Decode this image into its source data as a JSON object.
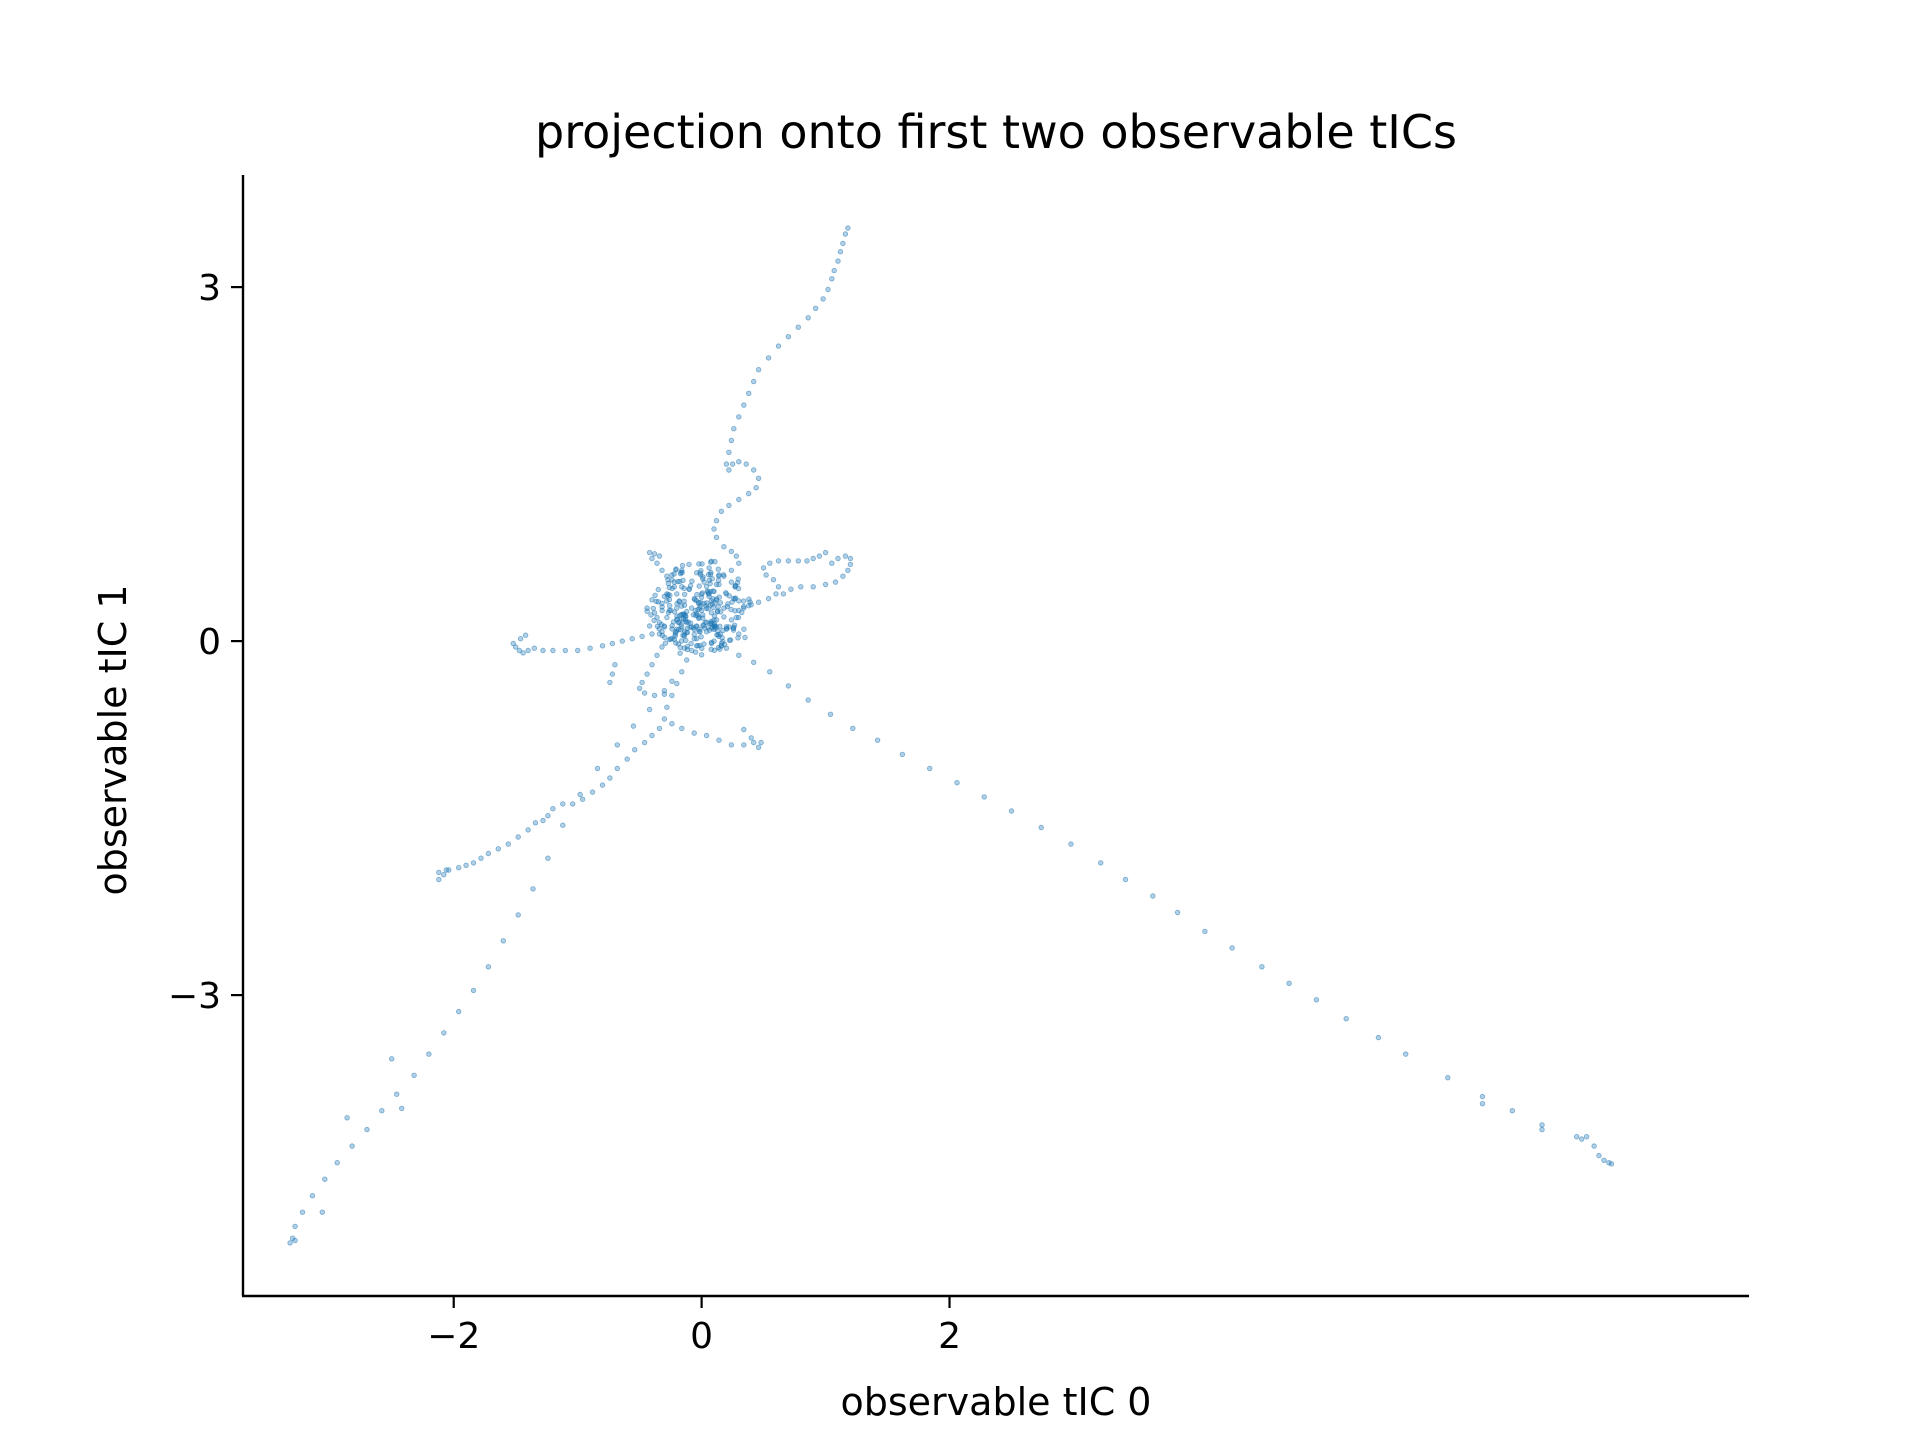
{
  "chart_data": {
    "type": "scatter",
    "title": "projection onto first two observable tICs",
    "xlabel": "observable tIC 0",
    "ylabel": "observable tIC 1",
    "xlim": [
      -3.7,
      8.45
    ],
    "ylim": [
      -5.55,
      3.95
    ],
    "xticks": [
      -2,
      0,
      2
    ],
    "xtick_labels": [
      "−2",
      "0",
      "2"
    ],
    "yticks": [
      -3,
      0,
      3
    ],
    "ytick_labels": [
      "−3",
      "0",
      "3"
    ],
    "grid": false,
    "legend": "none",
    "color": "#1f77b4",
    "series": [
      {
        "points": [
          [
            1.18,
            3.5
          ],
          [
            1.16,
            3.45
          ],
          [
            1.14,
            3.37
          ],
          [
            1.12,
            3.3
          ],
          [
            1.1,
            3.22
          ],
          [
            1.07,
            3.14
          ],
          [
            1.05,
            3.07
          ],
          [
            1.02,
            2.98
          ],
          [
            0.98,
            2.9
          ],
          [
            0.92,
            2.82
          ],
          [
            0.86,
            2.74
          ],
          [
            0.78,
            2.66
          ],
          [
            0.7,
            2.58
          ],
          [
            0.62,
            2.5
          ],
          [
            0.54,
            2.4
          ],
          [
            0.46,
            2.3
          ],
          [
            0.42,
            2.2
          ],
          [
            0.38,
            2.1
          ],
          [
            0.34,
            2.0
          ],
          [
            0.3,
            1.9
          ],
          [
            0.26,
            1.8
          ],
          [
            0.24,
            1.7
          ],
          [
            0.22,
            1.6
          ],
          [
            0.2,
            1.5
          ],
          [
            0.22,
            1.45
          ],
          [
            0.25,
            1.5
          ],
          [
            0.3,
            1.52
          ],
          [
            0.36,
            1.5
          ],
          [
            0.42,
            1.45
          ],
          [
            0.46,
            1.38
          ],
          [
            0.44,
            1.3
          ],
          [
            0.38,
            1.25
          ],
          [
            0.3,
            1.2
          ],
          [
            0.22,
            1.15
          ],
          [
            0.16,
            1.1
          ],
          [
            0.12,
            1.02
          ],
          [
            0.1,
            0.95
          ],
          [
            0.12,
            0.88
          ],
          [
            0.18,
            0.8
          ],
          [
            0.24,
            0.76
          ],
          [
            0.28,
            0.72
          ],
          [
            0.3,
            0.66
          ],
          [
            0.24,
            0.6
          ],
          [
            0.18,
            0.55
          ],
          [
            0.14,
            0.48
          ],
          [
            0.1,
            0.42
          ],
          [
            0.06,
            0.38
          ],
          [
            -0.42,
            0.75
          ],
          [
            -0.38,
            0.74
          ],
          [
            -0.34,
            0.72
          ],
          [
            -0.4,
            0.7
          ],
          [
            -0.36,
            0.66
          ],
          [
            -0.32,
            0.6
          ],
          [
            -0.28,
            0.55
          ],
          [
            -0.22,
            0.5
          ],
          [
            -0.16,
            0.46
          ],
          [
            -0.1,
            0.44
          ],
          [
            -0.2,
            0.4
          ],
          [
            -0.3,
            0.38
          ],
          [
            -0.4,
            0.35
          ],
          [
            -0.44,
            0.28
          ],
          [
            -0.38,
            0.24
          ],
          [
            -0.28,
            0.2
          ],
          [
            -0.18,
            0.16
          ],
          [
            1.0,
            0.75
          ],
          [
            0.95,
            0.72
          ],
          [
            0.9,
            0.7
          ],
          [
            0.85,
            0.68
          ],
          [
            0.78,
            0.68
          ],
          [
            0.7,
            0.68
          ],
          [
            0.62,
            0.68
          ],
          [
            0.55,
            0.66
          ],
          [
            0.5,
            0.62
          ],
          [
            0.52,
            0.56
          ],
          [
            0.58,
            0.52
          ],
          [
            0.62,
            0.46
          ],
          [
            0.6,
            0.4
          ],
          [
            0.54,
            0.36
          ],
          [
            0.46,
            0.33
          ],
          [
            0.38,
            0.3
          ],
          [
            0.3,
            0.26
          ],
          [
            0.8,
            0.46
          ],
          [
            0.9,
            0.46
          ],
          [
            1.0,
            0.48
          ],
          [
            1.08,
            0.5
          ],
          [
            1.14,
            0.55
          ],
          [
            1.18,
            0.6
          ],
          [
            1.2,
            0.65
          ],
          [
            1.2,
            0.7
          ],
          [
            1.16,
            0.72
          ],
          [
            1.1,
            0.7
          ],
          [
            1.05,
            0.66
          ],
          [
            0.72,
            0.44
          ],
          [
            0.66,
            0.4
          ],
          [
            -1.52,
            -0.02
          ],
          [
            -1.5,
            -0.05
          ],
          [
            -1.47,
            -0.08
          ],
          [
            -1.44,
            -0.1
          ],
          [
            -1.4,
            -0.08
          ],
          [
            -1.35,
            -0.06
          ],
          [
            -1.28,
            -0.08
          ],
          [
            -1.2,
            -0.08
          ],
          [
            -1.1,
            -0.08
          ],
          [
            -1.0,
            -0.08
          ],
          [
            -0.9,
            -0.06
          ],
          [
            -0.8,
            -0.04
          ],
          [
            -0.72,
            -0.02
          ],
          [
            -0.64,
            0.0
          ],
          [
            -0.56,
            0.02
          ],
          [
            -0.48,
            0.04
          ],
          [
            -0.4,
            0.06
          ],
          [
            -0.32,
            0.08
          ],
          [
            -1.46,
            0.02
          ],
          [
            -1.42,
            0.05
          ],
          [
            -0.32,
            -0.05
          ],
          [
            -0.36,
            -0.12
          ],
          [
            -0.4,
            -0.2
          ],
          [
            -0.44,
            -0.28
          ],
          [
            -0.48,
            -0.35
          ],
          [
            -0.5,
            -0.4
          ],
          [
            -0.46,
            -0.44
          ],
          [
            -0.38,
            -0.46
          ],
          [
            -0.3,
            -0.42
          ],
          [
            -0.24,
            -0.34
          ],
          [
            -0.7,
            -0.2
          ],
          [
            -0.72,
            -0.28
          ],
          [
            -0.74,
            -0.35
          ],
          [
            -0.04,
            0.02
          ],
          [
            -0.08,
            -0.08
          ],
          [
            -0.12,
            -0.16
          ],
          [
            -0.16,
            -0.26
          ],
          [
            -0.2,
            -0.36
          ],
          [
            -0.24,
            -0.46
          ],
          [
            -0.28,
            -0.56
          ],
          [
            -0.3,
            -0.66
          ],
          [
            -0.34,
            -0.74
          ],
          [
            -0.4,
            -0.8
          ],
          [
            -0.46,
            -0.86
          ],
          [
            -0.54,
            -0.92
          ],
          [
            -0.6,
            -1.0
          ],
          [
            -0.68,
            -1.08
          ],
          [
            -0.74,
            -1.16
          ],
          [
            -0.8,
            -1.22
          ],
          [
            -0.88,
            -1.28
          ],
          [
            -0.96,
            -1.34
          ],
          [
            -1.04,
            -1.38
          ],
          [
            -1.12,
            -1.38
          ],
          [
            -1.2,
            -1.42
          ],
          [
            -1.24,
            -1.48
          ],
          [
            -1.28,
            -1.52
          ],
          [
            -1.34,
            -1.54
          ],
          [
            -1.4,
            -1.6
          ],
          [
            -1.48,
            -1.66
          ],
          [
            -1.56,
            -1.72
          ],
          [
            -1.64,
            -1.76
          ],
          [
            -1.72,
            -1.8
          ],
          [
            -1.78,
            -1.84
          ],
          [
            -1.84,
            -1.88
          ],
          [
            -1.9,
            -1.9
          ],
          [
            -1.96,
            -1.92
          ],
          [
            -2.04,
            -1.94
          ],
          [
            -2.08,
            -1.98
          ],
          [
            -2.12,
            -2.02
          ],
          [
            -2.12,
            -1.96
          ],
          [
            -2.06,
            -1.94
          ],
          [
            -0.24,
            -0.7
          ],
          [
            -0.16,
            -0.74
          ],
          [
            -0.06,
            -0.78
          ],
          [
            0.04,
            -0.8
          ],
          [
            0.14,
            -0.84
          ],
          [
            0.24,
            -0.88
          ],
          [
            0.34,
            -0.88
          ],
          [
            0.42,
            -0.86
          ],
          [
            0.46,
            -0.9
          ],
          [
            0.48,
            -0.86
          ],
          [
            0.4,
            -0.82
          ],
          [
            0.34,
            -0.75
          ],
          [
            0.1,
            0.0
          ],
          [
            0.2,
            -0.06
          ],
          [
            0.3,
            -0.12
          ],
          [
            0.42,
            -0.18
          ],
          [
            0.55,
            -0.26
          ],
          [
            0.7,
            -0.38
          ],
          [
            0.86,
            -0.5
          ],
          [
            1.04,
            -0.62
          ],
          [
            1.22,
            -0.74
          ],
          [
            1.42,
            -0.84
          ],
          [
            1.62,
            -0.96
          ],
          [
            1.84,
            -1.08
          ],
          [
            2.06,
            -1.2
          ],
          [
            2.28,
            -1.32
          ],
          [
            2.5,
            -1.44
          ],
          [
            2.74,
            -1.58
          ],
          [
            2.98,
            -1.72
          ],
          [
            3.22,
            -1.88
          ],
          [
            3.42,
            -2.02
          ],
          [
            3.64,
            -2.16
          ],
          [
            3.84,
            -2.3
          ],
          [
            4.06,
            -2.46
          ],
          [
            4.28,
            -2.6
          ],
          [
            4.52,
            -2.76
          ],
          [
            4.74,
            -2.9
          ],
          [
            4.96,
            -3.04
          ],
          [
            5.2,
            -3.2
          ],
          [
            5.46,
            -3.36
          ],
          [
            5.68,
            -3.5
          ],
          [
            6.02,
            -3.7
          ],
          [
            6.3,
            -3.86
          ],
          [
            6.3,
            -3.92
          ],
          [
            6.54,
            -3.98
          ],
          [
            6.78,
            -4.1
          ],
          [
            6.78,
            -4.14
          ],
          [
            7.06,
            -4.2
          ],
          [
            7.1,
            -4.22
          ],
          [
            7.14,
            -4.2
          ],
          [
            7.2,
            -4.28
          ],
          [
            7.24,
            -4.36
          ],
          [
            7.28,
            -4.4
          ],
          [
            7.32,
            -4.42
          ],
          [
            7.34,
            -4.43
          ],
          [
            -0.3,
            -0.45
          ],
          [
            -0.42,
            -0.58
          ],
          [
            -0.55,
            -0.72
          ],
          [
            -0.68,
            -0.88
          ],
          [
            -0.84,
            -1.08
          ],
          [
            -0.98,
            -1.3
          ],
          [
            -1.12,
            -1.56
          ],
          [
            -1.24,
            -1.84
          ],
          [
            -1.36,
            -2.1
          ],
          [
            -1.48,
            -2.32
          ],
          [
            -1.6,
            -2.54
          ],
          [
            -1.72,
            -2.76
          ],
          [
            -1.84,
            -2.96
          ],
          [
            -1.96,
            -3.14
          ],
          [
            -2.08,
            -3.32
          ],
          [
            -2.2,
            -3.5
          ],
          [
            -2.32,
            -3.68
          ],
          [
            -2.46,
            -3.84
          ],
          [
            -2.58,
            -3.98
          ],
          [
            -2.7,
            -4.14
          ],
          [
            -2.82,
            -4.28
          ],
          [
            -2.94,
            -4.42
          ],
          [
            -3.04,
            -4.56
          ],
          [
            -3.14,
            -4.7
          ],
          [
            -3.22,
            -4.84
          ],
          [
            -3.28,
            -4.96
          ],
          [
            -3.3,
            -5.06
          ],
          [
            -3.32,
            -5.1
          ],
          [
            -3.28,
            -5.08
          ],
          [
            -2.5,
            -3.54
          ],
          [
            -2.42,
            -3.96
          ],
          [
            -2.86,
            -4.04
          ],
          [
            -3.06,
            -4.84
          ]
        ],
        "cluster": {
          "center": [
            -0.05,
            0.15
          ],
          "points": [
            [
              -0.08,
              0.12
            ],
            [
              -0.02,
              0.2
            ],
            [
              0.04,
              0.08
            ],
            [
              -0.12,
              0.25
            ],
            [
              -0.15,
              0.05
            ],
            [
              0.1,
              0.18
            ],
            [
              0.02,
              0.32
            ],
            [
              -0.2,
              0.18
            ],
            [
              -0.06,
              0.02
            ],
            [
              0.14,
              0.04
            ],
            [
              -0.18,
              0.34
            ],
            [
              0.06,
              0.4
            ],
            [
              -0.1,
              0.44
            ],
            [
              0.18,
              0.28
            ],
            [
              -0.26,
              0.26
            ],
            [
              -0.3,
              0.12
            ],
            [
              0.22,
              0.12
            ],
            [
              0.08,
              -0.02
            ],
            [
              -0.04,
              -0.04
            ],
            [
              -0.14,
              -0.06
            ],
            [
              0.02,
              0.5
            ],
            [
              0.12,
              0.48
            ],
            [
              -0.22,
              0.46
            ],
            [
              -0.32,
              0.32
            ],
            [
              0.26,
              0.36
            ],
            [
              0.28,
              0.2
            ],
            [
              0.16,
              -0.04
            ],
            [
              -0.24,
              0.02
            ],
            [
              0.0,
              0.26
            ],
            [
              -0.06,
              0.36
            ],
            [
              0.04,
              0.16
            ],
            [
              -0.12,
              0.16
            ],
            [
              -0.16,
              0.12
            ],
            [
              0.08,
              0.24
            ],
            [
              -0.02,
              0.1
            ],
            [
              0.1,
              0.1
            ],
            [
              -0.08,
              0.28
            ],
            [
              -0.2,
              0.28
            ],
            [
              0.2,
              0.4
            ],
            [
              0.14,
              0.56
            ],
            [
              -0.04,
              0.58
            ],
            [
              -0.28,
              0.4
            ],
            [
              -0.36,
              0.2
            ],
            [
              -0.34,
              0.06
            ],
            [
              0.3,
              0.06
            ],
            [
              0.34,
              0.28
            ],
            [
              0.24,
              0.5
            ],
            [
              0.06,
              0.62
            ],
            [
              -0.16,
              0.6
            ],
            [
              -0.24,
              0.56
            ]
          ]
        }
      }
    ]
  }
}
